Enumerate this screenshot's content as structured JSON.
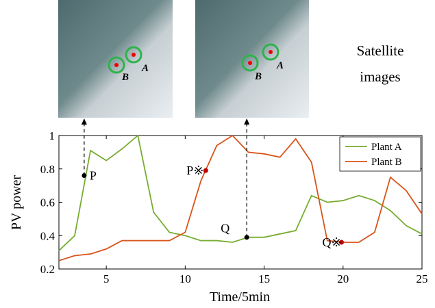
{
  "chart_data": {
    "type": "line",
    "xlabel": "Time/5min",
    "ylabel": "PV power",
    "x": [
      2,
      3,
      4,
      5,
      6,
      7,
      8,
      9,
      10,
      11,
      12,
      13,
      14,
      15,
      16,
      17,
      18,
      19,
      20,
      21,
      22,
      23,
      24,
      25
    ],
    "series": [
      {
        "name": "Plant A",
        "color": "#77ac30",
        "values": [
          0.31,
          0.4,
          0.91,
          0.85,
          0.92,
          1.0,
          0.54,
          0.42,
          0.4,
          0.37,
          0.37,
          0.36,
          0.39,
          0.39,
          0.41,
          0.43,
          0.64,
          0.6,
          0.61,
          0.64,
          0.61,
          0.55,
          0.46,
          0.41
        ]
      },
      {
        "name": "Plant B",
        "color": "#d95319",
        "values": [
          0.25,
          0.28,
          0.29,
          0.32,
          0.37,
          0.37,
          0.37,
          0.37,
          0.42,
          0.73,
          0.94,
          1.0,
          0.9,
          0.89,
          0.87,
          0.98,
          0.84,
          0.37,
          0.36,
          0.36,
          0.42,
          0.75,
          0.67,
          0.53
        ]
      }
    ],
    "xlim": [
      2,
      25
    ],
    "ylim": [
      0.2,
      1
    ],
    "xticks": [
      5,
      10,
      15,
      20,
      25
    ],
    "yticks": [
      0.2,
      0.4,
      0.6,
      0.8,
      1
    ],
    "legend": "upper right",
    "annotations": [
      {
        "text": "P",
        "x": 3.6,
        "y": 0.76,
        "color": "#000000"
      },
      {
        "text": "P※",
        "x": 11.3,
        "y": 0.79,
        "color": "#c00000"
      },
      {
        "text": "Q",
        "x": 13.9,
        "y": 0.39,
        "color": "#000000"
      },
      {
        "text": "Q※",
        "x": 19.9,
        "y": 0.36,
        "color": "#c00000"
      }
    ]
  },
  "images": [
    {
      "markers": [
        "A",
        "B"
      ]
    },
    {
      "markers": [
        "A",
        "B"
      ]
    }
  ],
  "caption": "Satellite images"
}
